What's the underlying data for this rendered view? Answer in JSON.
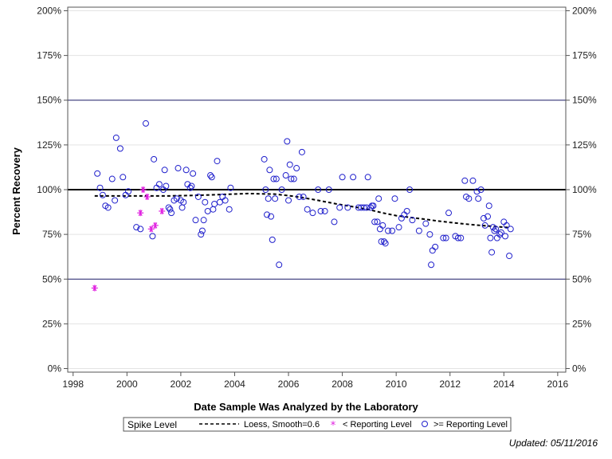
{
  "chart_data": {
    "type": "scatter",
    "title": "",
    "xlabel": "Date Sample Was Analyzed by the Laboratory",
    "ylabel": "Percent Recovery",
    "xlim": [
      1997.8,
      2016.3
    ],
    "ylim": [
      -2,
      202
    ],
    "x_ticks": [
      1998,
      2000,
      2002,
      2004,
      2006,
      2008,
      2010,
      2012,
      2014,
      2016
    ],
    "y_ticks": [
      0,
      25,
      50,
      75,
      100,
      125,
      150,
      175,
      200
    ],
    "y_tick_labels": [
      "0%",
      "25%",
      "50%",
      "75%",
      "100%",
      "125%",
      "150%",
      "175%",
      "200%"
    ],
    "reference_lines": [
      {
        "y": 50,
        "style": "thin",
        "color": "#1a1a66"
      },
      {
        "y": 100,
        "style": "thick",
        "color": "#000000"
      },
      {
        "y": 150,
        "style": "thin",
        "color": "#1a1a66"
      }
    ],
    "legend": {
      "title": "Spike Level",
      "position": "bottom",
      "entries": [
        {
          "label": "Loess, Smooth=0.6",
          "kind": "line"
        },
        {
          "label": "< Reporting Level",
          "kind": "star"
        },
        {
          "label": ">= Reporting Level",
          "kind": "circle"
        }
      ]
    },
    "series": [
      {
        "name": "< Reporting Level",
        "marker": "star",
        "color": "#e020e0",
        "points": [
          [
            1998.8,
            45
          ],
          [
            2000.5,
            87
          ],
          [
            2000.6,
            100
          ],
          [
            2000.75,
            96
          ],
          [
            2000.9,
            78
          ],
          [
            2001.05,
            80
          ],
          [
            2001.3,
            88
          ]
        ]
      },
      {
        "name": ">= Reporting Level",
        "marker": "circle",
        "color": "#2020cc",
        "points": [
          [
            1998.9,
            109
          ],
          [
            1999.0,
            101
          ],
          [
            1999.1,
            97
          ],
          [
            1999.2,
            91
          ],
          [
            1999.3,
            90
          ],
          [
            1999.45,
            106
          ],
          [
            1999.55,
            94
          ],
          [
            1999.6,
            129
          ],
          [
            1999.75,
            123
          ],
          [
            1999.85,
            107
          ],
          [
            1999.95,
            97
          ],
          [
            2000.05,
            99
          ],
          [
            2000.35,
            79
          ],
          [
            2000.5,
            78
          ],
          [
            2000.7,
            137
          ],
          [
            2000.95,
            74
          ],
          [
            2001.0,
            117
          ],
          [
            2001.1,
            101
          ],
          [
            2001.2,
            103
          ],
          [
            2001.35,
            100
          ],
          [
            2001.4,
            111
          ],
          [
            2001.45,
            102
          ],
          [
            2001.55,
            90
          ],
          [
            2001.6,
            89
          ],
          [
            2001.65,
            87
          ],
          [
            2001.75,
            94
          ],
          [
            2001.85,
            95
          ],
          [
            2001.9,
            112
          ],
          [
            2002.0,
            94
          ],
          [
            2002.05,
            90
          ],
          [
            2002.1,
            93
          ],
          [
            2002.2,
            111
          ],
          [
            2002.25,
            103
          ],
          [
            2002.35,
            101
          ],
          [
            2002.4,
            102
          ],
          [
            2002.45,
            109
          ],
          [
            2002.55,
            83
          ],
          [
            2002.65,
            96
          ],
          [
            2002.75,
            75
          ],
          [
            2002.8,
            77
          ],
          [
            2002.85,
            83
          ],
          [
            2002.9,
            93
          ],
          [
            2003.0,
            88
          ],
          [
            2003.1,
            108
          ],
          [
            2003.15,
            107
          ],
          [
            2003.2,
            89
          ],
          [
            2003.25,
            92
          ],
          [
            2003.35,
            116
          ],
          [
            2003.45,
            93
          ],
          [
            2003.55,
            96
          ],
          [
            2003.65,
            94
          ],
          [
            2003.8,
            89
          ],
          [
            2003.85,
            101
          ],
          [
            2005.1,
            117
          ],
          [
            2005.15,
            100
          ],
          [
            2005.2,
            86
          ],
          [
            2005.25,
            95
          ],
          [
            2005.3,
            111
          ],
          [
            2005.35,
            85
          ],
          [
            2005.4,
            72
          ],
          [
            2005.45,
            106
          ],
          [
            2005.5,
            95
          ],
          [
            2005.55,
            106
          ],
          [
            2005.65,
            58
          ],
          [
            2005.75,
            100
          ],
          [
            2005.9,
            108
          ],
          [
            2005.95,
            127
          ],
          [
            2006.0,
            94
          ],
          [
            2006.05,
            114
          ],
          [
            2006.1,
            106
          ],
          [
            2006.2,
            106
          ],
          [
            2006.3,
            112
          ],
          [
            2006.4,
            96
          ],
          [
            2006.5,
            121
          ],
          [
            2006.55,
            96
          ],
          [
            2006.7,
            89
          ],
          [
            2006.9,
            87
          ],
          [
            2007.1,
            100
          ],
          [
            2007.2,
            88
          ],
          [
            2007.35,
            88
          ],
          [
            2007.5,
            100
          ],
          [
            2007.7,
            82
          ],
          [
            2007.9,
            90
          ],
          [
            2008.0,
            107
          ],
          [
            2008.2,
            90
          ],
          [
            2008.4,
            107
          ],
          [
            2008.6,
            90
          ],
          [
            2008.7,
            90
          ],
          [
            2008.8,
            90
          ],
          [
            2008.9,
            90
          ],
          [
            2008.95,
            107
          ],
          [
            2009.05,
            90
          ],
          [
            2009.1,
            91
          ],
          [
            2009.15,
            91
          ],
          [
            2009.2,
            82
          ],
          [
            2009.3,
            82
          ],
          [
            2009.35,
            95
          ],
          [
            2009.4,
            78
          ],
          [
            2009.45,
            71
          ],
          [
            2009.5,
            80
          ],
          [
            2009.55,
            71
          ],
          [
            2009.6,
            70
          ],
          [
            2009.7,
            77
          ],
          [
            2009.85,
            77
          ],
          [
            2009.95,
            95
          ],
          [
            2010.1,
            79
          ],
          [
            2010.2,
            84
          ],
          [
            2010.3,
            86
          ],
          [
            2010.4,
            88
          ],
          [
            2010.5,
            100
          ],
          [
            2010.6,
            83
          ],
          [
            2010.85,
            77
          ],
          [
            2011.1,
            81
          ],
          [
            2011.25,
            75
          ],
          [
            2011.3,
            58
          ],
          [
            2011.35,
            66
          ],
          [
            2011.45,
            68
          ],
          [
            2011.75,
            73
          ],
          [
            2011.85,
            73
          ],
          [
            2011.95,
            87
          ],
          [
            2012.2,
            74
          ],
          [
            2012.3,
            73
          ],
          [
            2012.4,
            73
          ],
          [
            2012.55,
            105
          ],
          [
            2012.6,
            96
          ],
          [
            2012.7,
            95
          ],
          [
            2012.85,
            105
          ],
          [
            2013.0,
            99
          ],
          [
            2013.05,
            95
          ],
          [
            2013.15,
            100
          ],
          [
            2013.25,
            84
          ],
          [
            2013.3,
            80
          ],
          [
            2013.4,
            85
          ],
          [
            2013.45,
            91
          ],
          [
            2013.5,
            73
          ],
          [
            2013.55,
            65
          ],
          [
            2013.6,
            79
          ],
          [
            2013.65,
            77
          ],
          [
            2013.7,
            78
          ],
          [
            2013.75,
            73
          ],
          [
            2013.85,
            75
          ],
          [
            2013.9,
            76
          ],
          [
            2014.0,
            82
          ],
          [
            2014.05,
            74
          ],
          [
            2014.1,
            80
          ],
          [
            2014.2,
            63
          ],
          [
            2014.25,
            78
          ]
        ]
      }
    ],
    "loess": {
      "name": "Loess, Smooth=0.6",
      "style": "dashed",
      "color": "#000000",
      "points": [
        [
          1998.8,
          96.5
        ],
        [
          1999.5,
          96.5
        ],
        [
          2000.5,
          96.5
        ],
        [
          2001.5,
          96.5
        ],
        [
          2002.5,
          96.8
        ],
        [
          2003.5,
          97.3
        ],
        [
          2004.5,
          97.8
        ],
        [
          2005.5,
          97.5
        ],
        [
          2006.2,
          96.3
        ],
        [
          2007.0,
          94.3
        ],
        [
          2007.8,
          92.0
        ],
        [
          2008.5,
          90.2
        ],
        [
          2009.0,
          88.8
        ],
        [
          2009.5,
          87.0
        ],
        [
          2010.0,
          85.5
        ],
        [
          2010.5,
          84.5
        ],
        [
          2011.0,
          83.6
        ],
        [
          2011.5,
          82.6
        ],
        [
          2012.0,
          81.7
        ],
        [
          2012.5,
          80.9
        ],
        [
          2013.0,
          80.2
        ],
        [
          2013.5,
          79.6
        ],
        [
          2014.0,
          79.0
        ],
        [
          2014.2,
          78.8
        ]
      ]
    }
  },
  "footnote": "Updated: 05/11/2016"
}
